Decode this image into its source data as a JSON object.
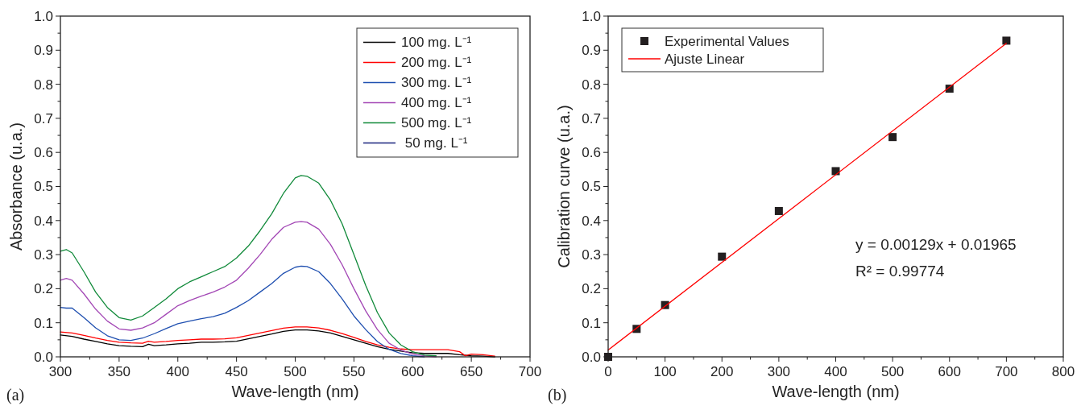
{
  "chart_data": [
    {
      "type": "line",
      "xlabel": "Wave-length (nm)",
      "ylabel": "Absorbance (u.a.)",
      "xlim": [
        300,
        700
      ],
      "ylim": [
        0,
        1
      ],
      "xticks": [
        300,
        {
          "value": 325,
          "label": null
        },
        350,
        {
          "value": 375,
          "label": null
        },
        400,
        {
          "value": 425,
          "label": null
        },
        450,
        {
          "value": 475,
          "label": null
        },
        500,
        {
          "value": 525,
          "label": null
        },
        550,
        {
          "value": 575,
          "label": null
        },
        600,
        {
          "value": 625,
          "label": null
        },
        650,
        {
          "value": 675,
          "label": null
        },
        700
      ],
      "yticks": [
        {
          "value": 0,
          "label": "0.0"
        },
        {
          "value": 0.05,
          "label": null
        },
        {
          "value": 0.1,
          "label": "0.1"
        },
        {
          "value": 0.15,
          "label": null
        },
        {
          "value": 0.2,
          "label": "0.2"
        },
        {
          "value": 0.25,
          "label": null
        },
        {
          "value": 0.3,
          "label": "0.3"
        },
        {
          "value": 0.35,
          "label": null
        },
        {
          "value": 0.4,
          "label": "0.4"
        },
        {
          "value": 0.45,
          "label": null
        },
        {
          "value": 0.5,
          "label": "0.5"
        },
        {
          "value": 0.55,
          "label": null
        },
        {
          "value": 0.6,
          "label": "0.6"
        },
        {
          "value": 0.65,
          "label": null
        },
        {
          "value": 0.7,
          "label": "0.7"
        },
        {
          "value": 0.75,
          "label": null
        },
        {
          "value": 0.8,
          "label": "0.8"
        },
        {
          "value": 0.85,
          "label": null
        },
        {
          "value": 0.9,
          "label": "0.9"
        },
        {
          "value": 0.95,
          "label": null
        },
        {
          "value": 1,
          "label": "1.0"
        }
      ],
      "grid": false,
      "legend": "top right",
      "marker": "none",
      "line_style": "solid",
      "annotations": [
        "(a)"
      ],
      "series": [
        {
          "name": "100 mg. L⁻¹",
          "color": "#000000",
          "x": [
            300,
            310,
            320,
            330,
            340,
            350,
            360,
            370,
            375,
            380,
            390,
            400,
            410,
            420,
            430,
            440,
            450,
            460,
            470,
            480,
            490,
            500,
            510,
            520,
            530,
            540,
            550,
            560,
            570,
            580,
            590,
            600,
            610,
            620,
            630,
            640,
            650,
            660,
            670
          ],
          "values": [
            0.064,
            0.06,
            0.052,
            0.045,
            0.038,
            0.033,
            0.031,
            0.03,
            0.037,
            0.033,
            0.035,
            0.038,
            0.04,
            0.043,
            0.043,
            0.044,
            0.046,
            0.053,
            0.06,
            0.067,
            0.075,
            0.079,
            0.079,
            0.076,
            0.07,
            0.06,
            0.05,
            0.04,
            0.03,
            0.022,
            0.017,
            0.012,
            0.01,
            0.01,
            0.01,
            0.006,
            0.003,
            0.002,
            0
          ]
        },
        {
          "name": "200 mg. L⁻¹",
          "color": "#ff0000",
          "x": [
            300,
            310,
            320,
            330,
            340,
            350,
            360,
            370,
            375,
            380,
            390,
            400,
            410,
            420,
            430,
            440,
            450,
            460,
            470,
            480,
            490,
            500,
            510,
            520,
            530,
            540,
            550,
            560,
            570,
            580,
            590,
            600,
            610,
            620,
            630,
            640,
            645,
            650,
            660,
            670
          ],
          "values": [
            0.073,
            0.07,
            0.063,
            0.055,
            0.048,
            0.043,
            0.041,
            0.04,
            0.046,
            0.043,
            0.045,
            0.048,
            0.05,
            0.052,
            0.052,
            0.053,
            0.056,
            0.063,
            0.07,
            0.077,
            0.084,
            0.088,
            0.088,
            0.085,
            0.078,
            0.068,
            0.057,
            0.045,
            0.035,
            0.028,
            0.023,
            0.021,
            0.021,
            0.021,
            0.021,
            0.015,
            0.003,
            0.008,
            0.006,
            0.002
          ]
        },
        {
          "name": "300 mg. L⁻¹",
          "color": "#1f4fb0",
          "x": [
            300,
            305,
            310,
            320,
            330,
            340,
            350,
            360,
            370,
            380,
            390,
            400,
            410,
            420,
            430,
            440,
            450,
            460,
            470,
            480,
            490,
            500,
            505,
            510,
            520,
            530,
            540,
            550,
            560,
            570,
            580,
            590,
            600,
            610
          ],
          "values": [
            0.145,
            0.143,
            0.143,
            0.115,
            0.085,
            0.062,
            0.05,
            0.048,
            0.055,
            0.068,
            0.083,
            0.097,
            0.105,
            0.112,
            0.118,
            0.128,
            0.145,
            0.165,
            0.19,
            0.215,
            0.245,
            0.263,
            0.266,
            0.265,
            0.25,
            0.215,
            0.17,
            0.12,
            0.08,
            0.045,
            0.022,
            0.01,
            0.003,
            0
          ]
        },
        {
          "name": "400 mg. L⁻¹",
          "color": "#a347b5",
          "x": [
            300,
            305,
            310,
            320,
            330,
            340,
            350,
            360,
            370,
            380,
            390,
            400,
            410,
            420,
            430,
            440,
            450,
            460,
            470,
            480,
            490,
            500,
            505,
            510,
            520,
            530,
            540,
            550,
            560,
            570,
            580,
            590,
            600,
            610,
            620
          ],
          "values": [
            0.225,
            0.23,
            0.225,
            0.185,
            0.14,
            0.105,
            0.082,
            0.078,
            0.085,
            0.1,
            0.125,
            0.15,
            0.165,
            0.178,
            0.19,
            0.205,
            0.225,
            0.26,
            0.3,
            0.345,
            0.38,
            0.395,
            0.397,
            0.395,
            0.375,
            0.33,
            0.27,
            0.2,
            0.135,
            0.08,
            0.04,
            0.02,
            0.008,
            0.003,
            0
          ]
        },
        {
          "name": "500 mg. L⁻¹",
          "color": "#118a3a",
          "x": [
            300,
            305,
            310,
            320,
            330,
            340,
            350,
            360,
            370,
            380,
            390,
            400,
            410,
            420,
            430,
            440,
            450,
            460,
            470,
            480,
            490,
            500,
            505,
            510,
            520,
            530,
            540,
            550,
            560,
            570,
            580,
            590,
            600,
            610,
            620
          ],
          "values": [
            0.31,
            0.315,
            0.305,
            0.25,
            0.19,
            0.145,
            0.115,
            0.108,
            0.12,
            0.145,
            0.17,
            0.2,
            0.22,
            0.235,
            0.25,
            0.265,
            0.29,
            0.325,
            0.37,
            0.42,
            0.48,
            0.525,
            0.532,
            0.53,
            0.51,
            0.46,
            0.39,
            0.3,
            0.21,
            0.13,
            0.07,
            0.035,
            0.015,
            0.005,
            0.003
          ]
        },
        {
          "name": " 50 mg. L⁻¹",
          "color": "#1a237e"
        }
      ]
    },
    {
      "type": "scatter",
      "xlabel": "Wave-length (nm)",
      "ylabel": "Calibration curve (u.a.)",
      "xlim": [
        0,
        800
      ],
      "ylim": [
        0,
        1
      ],
      "xticks": [
        0,
        {
          "value": 50,
          "label": null
        },
        100,
        {
          "value": 150,
          "label": null
        },
        200,
        {
          "value": 250,
          "label": null
        },
        300,
        {
          "value": 350,
          "label": null
        },
        400,
        {
          "value": 450,
          "label": null
        },
        500,
        {
          "value": 550,
          "label": null
        },
        600,
        {
          "value": 650,
          "label": null
        },
        700,
        {
          "value": 750,
          "label": null
        },
        800
      ],
      "yticks": [
        {
          "value": 0,
          "label": "0.0"
        },
        {
          "value": 0.05,
          "label": null
        },
        {
          "value": 0.1,
          "label": "0.1"
        },
        {
          "value": 0.15,
          "label": null
        },
        {
          "value": 0.2,
          "label": "0.2"
        },
        {
          "value": 0.25,
          "label": null
        },
        {
          "value": 0.3,
          "label": "0.3"
        },
        {
          "value": 0.35,
          "label": null
        },
        {
          "value": 0.4,
          "label": "0.4"
        },
        {
          "value": 0.45,
          "label": null
        },
        {
          "value": 0.5,
          "label": "0.5"
        },
        {
          "value": 0.55,
          "label": null
        },
        {
          "value": 0.6,
          "label": "0.6"
        },
        {
          "value": 0.65,
          "label": null
        },
        {
          "value": 0.7,
          "label": "0.7"
        },
        {
          "value": 0.75,
          "label": null
        },
        {
          "value": 0.8,
          "label": "0.8"
        },
        {
          "value": 0.85,
          "label": null
        },
        {
          "value": 0.9,
          "label": "0.9"
        },
        {
          "value": 0.95,
          "label": null
        },
        {
          "value": 1,
          "label": "1.0"
        }
      ],
      "grid": false,
      "legend": "top left",
      "annotations": [
        "(b)",
        "y = 0.00129x + 0.01965",
        "R² = 0.99774"
      ],
      "series": [
        {
          "name": "Experimental Values",
          "marker": "square",
          "color": "#231f20",
          "x": [
            0,
            50,
            100,
            200,
            300,
            400,
            500,
            600,
            700
          ],
          "values": [
            0,
            0.082,
            0.152,
            0.294,
            0.428,
            0.545,
            0.645,
            0.787,
            0.928
          ]
        },
        {
          "name": "Ajuste Linear",
          "type": "line",
          "marker": "none",
          "line_style": "solid",
          "color": "#ff0000",
          "x": [
            0,
            700
          ],
          "values": [
            0.02,
            0.92
          ]
        }
      ]
    }
  ]
}
